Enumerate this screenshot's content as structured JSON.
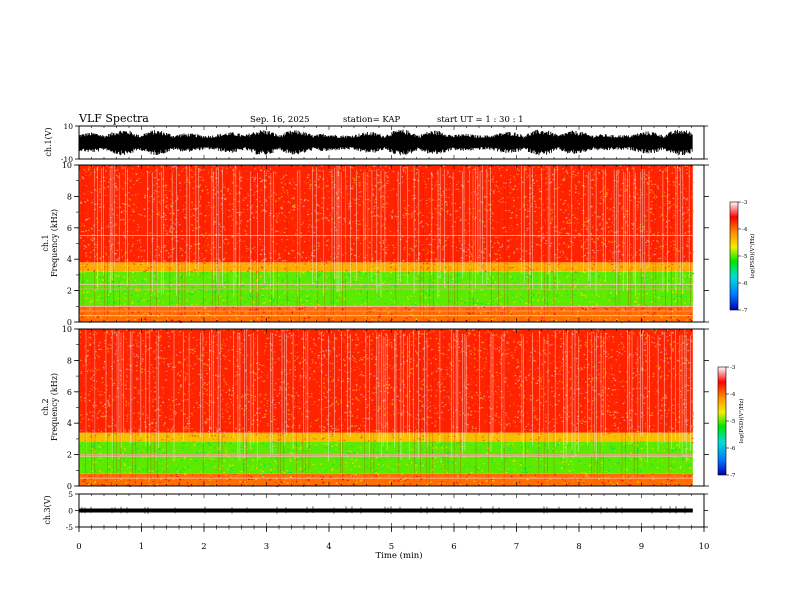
{
  "header": {
    "title": "VLF Spectra",
    "date": "Sep. 16, 2025",
    "station": "station= KAP",
    "start_ut": "start  UT =   1 : 30 : 1"
  },
  "chart_data": [
    {
      "type": "line",
      "name": "ch1-waveform",
      "ylabel": "ch.1(V)",
      "ylim": [
        -10,
        10
      ],
      "yticks": [
        10,
        -10
      ],
      "xlim": [
        0,
        10
      ],
      "data_end_min": 9.82,
      "band_center_v": 0,
      "band_amplitude_v": [
        -8,
        8
      ]
    },
    {
      "type": "heatmap",
      "name": "ch1-spectrogram",
      "ylabel_channel": "ch.1",
      "ylabel": "Frequency  (kHz)",
      "ylim": [
        0,
        10
      ],
      "yticks": [
        0,
        2,
        4,
        6,
        8,
        10
      ],
      "xlim": [
        0,
        10
      ],
      "data_end_min": 9.82,
      "colorbar": {
        "label": "log(PSD)(V²/Hz)",
        "range": [
          -7,
          -3
        ],
        "ticks": [
          -3,
          -4,
          -5,
          -6,
          -7
        ]
      },
      "bands": [
        {
          "from_khz": 0.0,
          "to_khz": 1.0,
          "level": -4.0
        },
        {
          "from_khz": 1.0,
          "to_khz": 3.2,
          "level": -5.0
        },
        {
          "from_khz": 3.2,
          "to_khz": 3.8,
          "level": -4.3
        },
        {
          "from_khz": 3.8,
          "to_khz": 10.0,
          "level": -3.7
        }
      ],
      "lines_khz": [
        0.4,
        0.7,
        1.0,
        2.1,
        2.4,
        3.6,
        5.5
      ]
    },
    {
      "type": "heatmap",
      "name": "ch2-spectrogram",
      "ylabel_channel": "ch.2",
      "ylabel": "Frequency  (kHz)",
      "ylim": [
        0,
        10
      ],
      "yticks": [
        0,
        2,
        4,
        6,
        8,
        10
      ],
      "xlim": [
        0,
        10
      ],
      "data_end_min": 9.82,
      "colorbar": {
        "label": "log(PSD)(V²/Hz)",
        "range": [
          -7,
          -3
        ],
        "ticks": [
          -3,
          -4,
          -5,
          -6,
          -7
        ]
      },
      "bands": [
        {
          "from_khz": 0.0,
          "to_khz": 0.8,
          "level": -4.0
        },
        {
          "from_khz": 0.8,
          "to_khz": 2.8,
          "level": -5.0
        },
        {
          "from_khz": 2.8,
          "to_khz": 3.4,
          "level": -4.4
        },
        {
          "from_khz": 3.4,
          "to_khz": 10.0,
          "level": -3.7
        }
      ],
      "lines_khz": [
        0.5,
        0.8,
        1.9,
        2.0
      ]
    },
    {
      "type": "line",
      "name": "ch3-waveform",
      "ylabel": "ch.3(V)",
      "ylim": [
        -5,
        5
      ],
      "yticks": [
        5,
        0,
        -5
      ],
      "xlim": [
        0,
        10
      ],
      "data_end_min": 9.82,
      "band_center_v": 0,
      "band_amplitude_v": [
        -0.6,
        0.6
      ]
    }
  ],
  "xaxis": {
    "label": "Time  (min)",
    "ticks": [
      0,
      1,
      2,
      3,
      4,
      5,
      6,
      7,
      8,
      9,
      10
    ]
  },
  "colors": {
    "scale": [
      "#0000b4",
      "#0078ff",
      "#00dcdc",
      "#00e600",
      "#f0f000",
      "#ff8c00",
      "#ff0000",
      "#ffffff"
    ],
    "axis": "#000000"
  }
}
